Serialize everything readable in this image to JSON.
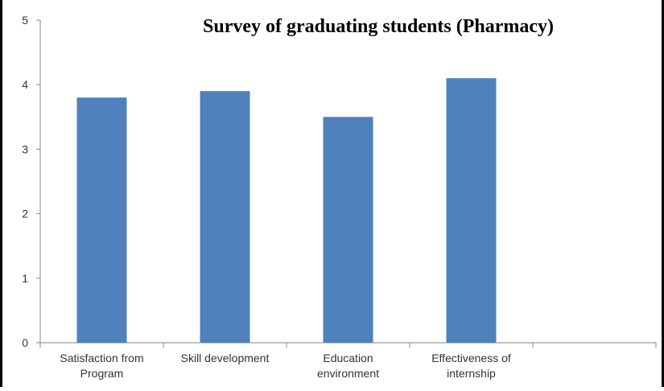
{
  "chart_data": {
    "type": "bar",
    "title": "Survey of graduating students (Pharmacy)",
    "categories": [
      [
        "Satisfaction from",
        "Program"
      ],
      [
        "Skill development"
      ],
      [
        "Education",
        "environment"
      ],
      [
        "Effectiveness of",
        "internship"
      ],
      [
        ""
      ]
    ],
    "values": [
      3.8,
      3.9,
      3.5,
      4.1,
      null
    ],
    "ylim": [
      0,
      5
    ],
    "yticks": [
      0,
      1,
      2,
      3,
      4,
      5
    ],
    "grid": false,
    "legend": "none",
    "bar_color": "#4F81BD",
    "axis_color": "#868686"
  }
}
